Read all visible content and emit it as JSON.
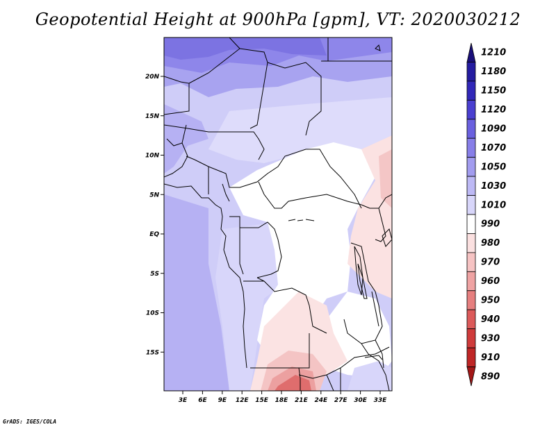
{
  "title": "Geopotential Height at 900hPa [gpm], VT: 2020030212",
  "footer": "GrADS: IGES/COLA",
  "map": {
    "lat_ticks": [
      "20N",
      "15N",
      "10N",
      "5N",
      "EQ",
      "5S",
      "10S",
      "15S"
    ],
    "lon_ticks": [
      "3E",
      "6E",
      "9E",
      "12E",
      "15E",
      "18E",
      "21E",
      "24E",
      "27E",
      "30E",
      "33E"
    ]
  },
  "colorbar": {
    "levels": [
      {
        "label": "1210",
        "color": "#1a0f7a"
      },
      {
        "label": "1180",
        "color": "#241ca0"
      },
      {
        "label": "1150",
        "color": "#3127b8"
      },
      {
        "label": "1120",
        "color": "#4a3fd0"
      },
      {
        "label": "1090",
        "color": "#6a60df"
      },
      {
        "label": "1070",
        "color": "#877ee8"
      },
      {
        "label": "1050",
        "color": "#a29cef"
      },
      {
        "label": "1030",
        "color": "#bdb9f5"
      },
      {
        "label": "1010",
        "color": "#d8d6fa"
      },
      {
        "label": "990",
        "color": "#ffffff"
      },
      {
        "label": "980",
        "color": "#fbe0e0"
      },
      {
        "label": "970",
        "color": "#f6c3c3"
      },
      {
        "label": "960",
        "color": "#efa3a3"
      },
      {
        "label": "950",
        "color": "#e67f7f"
      },
      {
        "label": "940",
        "color": "#dc5a5a"
      },
      {
        "label": "930",
        "color": "#cf3b3b"
      },
      {
        "label": "910",
        "color": "#bf2626"
      },
      {
        "label": "890",
        "color": "#a31818"
      }
    ]
  }
}
